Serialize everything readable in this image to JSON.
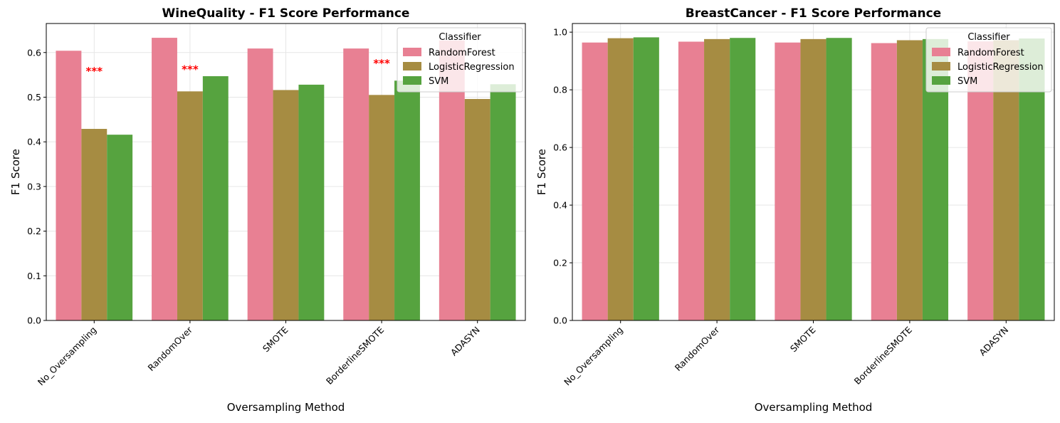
{
  "colors": {
    "RandomForest": "#e88093",
    "LogisticRegression": "#a68c42",
    "SVM": "#56a33f",
    "significance": "#ff0000",
    "grid": "#e6e6e6"
  },
  "chart_data": [
    {
      "type": "bar",
      "title": "WineQuality - F1 Score Performance",
      "xlabel": "Oversampling Method",
      "ylabel": "F1 Score",
      "ylim": [
        0,
        0.665
      ],
      "yticks": [
        0.0,
        0.1,
        0.2,
        0.3,
        0.4,
        0.5,
        0.6
      ],
      "ytick_labels": [
        "0.0",
        "0.1",
        "0.2",
        "0.3",
        "0.4",
        "0.5",
        "0.6"
      ],
      "grid": true,
      "categories": [
        "No_Oversampling",
        "RandomOver",
        "SMOTE",
        "BorderlineSMOTE",
        "ADASYN"
      ],
      "series": [
        {
          "name": "RandomForest",
          "values": [
            0.604,
            0.633,
            0.609,
            0.609,
            0.627
          ]
        },
        {
          "name": "LogisticRegression",
          "values": [
            0.429,
            0.513,
            0.516,
            0.505,
            0.496
          ]
        },
        {
          "name": "SVM",
          "values": [
            0.416,
            0.547,
            0.528,
            0.537,
            0.529
          ]
        }
      ],
      "legend": {
        "title": "Classifier",
        "placement": "top-right"
      },
      "annotations": [
        {
          "text": "***",
          "category": "No_Oversampling",
          "y": 0.55
        },
        {
          "text": "***",
          "category": "RandomOver",
          "y": 0.554
        },
        {
          "text": "***",
          "category": "BorderlineSMOTE",
          "y": 0.568
        }
      ]
    },
    {
      "type": "bar",
      "title": "BreastCancer - F1 Score Performance",
      "xlabel": "Oversampling Method",
      "ylabel": "F1 Score",
      "ylim": [
        0,
        1.03
      ],
      "yticks": [
        0.0,
        0.2,
        0.4,
        0.6,
        0.8,
        1.0
      ],
      "ytick_labels": [
        "0.0",
        "0.2",
        "0.4",
        "0.6",
        "0.8",
        "1.0"
      ],
      "grid": true,
      "categories": [
        "No_Oversampling",
        "RandomOver",
        "SMOTE",
        "BorderlineSMOTE",
        "ADASYN"
      ],
      "series": [
        {
          "name": "RandomForest",
          "values": [
            0.964,
            0.967,
            0.964,
            0.962,
            0.968
          ]
        },
        {
          "name": "LogisticRegression",
          "values": [
            0.979,
            0.976,
            0.976,
            0.972,
            0.972
          ]
        },
        {
          "name": "SVM",
          "values": [
            0.982,
            0.98,
            0.98,
            0.976,
            0.978
          ]
        }
      ],
      "legend": {
        "title": "Classifier",
        "placement": "top-right"
      },
      "annotations": []
    }
  ]
}
